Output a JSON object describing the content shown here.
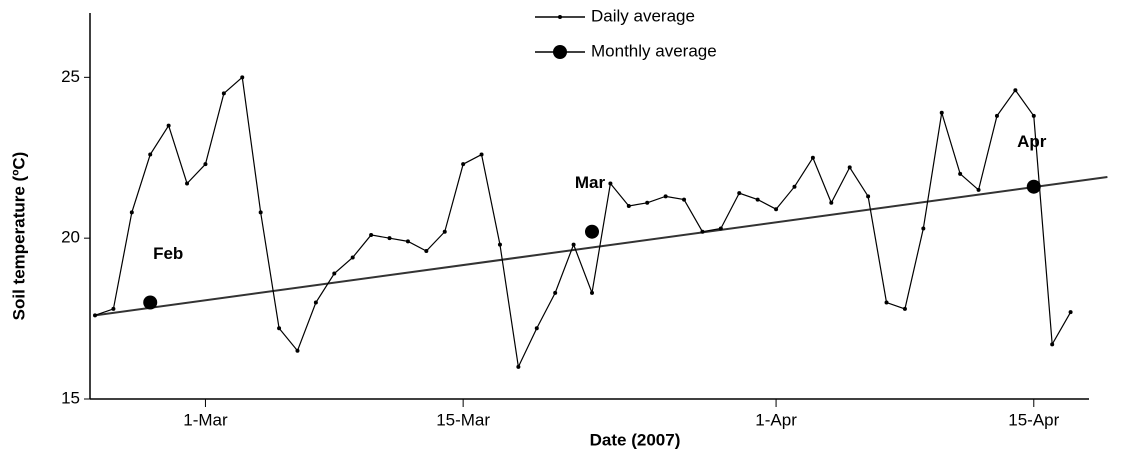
{
  "chart_data": {
    "type": "line",
    "x_label": "Date (2007)",
    "y_label": "Soil temperature (ºC)",
    "x": [
      "2007-02-23",
      "2007-02-24",
      "2007-02-25",
      "2007-02-26",
      "2007-02-27",
      "2007-02-28",
      "2007-03-01",
      "2007-03-02",
      "2007-03-03",
      "2007-03-04",
      "2007-03-05",
      "2007-03-06",
      "2007-03-07",
      "2007-03-08",
      "2007-03-09",
      "2007-03-10",
      "2007-03-11",
      "2007-03-12",
      "2007-03-13",
      "2007-03-14",
      "2007-03-15",
      "2007-03-16",
      "2007-03-17",
      "2007-03-18",
      "2007-03-19",
      "2007-03-20",
      "2007-03-21",
      "2007-03-22",
      "2007-03-23",
      "2007-03-24",
      "2007-03-25",
      "2007-03-26",
      "2007-03-27",
      "2007-03-28",
      "2007-03-29",
      "2007-03-30",
      "2007-03-31",
      "2007-04-01",
      "2007-04-02",
      "2007-04-03",
      "2007-04-04",
      "2007-04-05",
      "2007-04-06",
      "2007-04-07",
      "2007-04-08",
      "2007-04-09",
      "2007-04-10",
      "2007-04-11",
      "2007-04-12",
      "2007-04-13",
      "2007-04-14",
      "2007-04-15",
      "2007-04-16",
      "2007-04-17"
    ],
    "series": [
      {
        "name": "Daily average",
        "color": "#000000",
        "values": [
          17.6,
          17.8,
          20.8,
          22.6,
          23.5,
          21.7,
          22.3,
          24.5,
          25.0,
          20.8,
          17.2,
          16.5,
          18.0,
          18.9,
          19.4,
          20.1,
          20.0,
          19.9,
          19.6,
          20.2,
          22.3,
          22.6,
          19.8,
          16.0,
          17.2,
          18.3,
          19.8,
          18.3,
          21.7,
          21.0,
          21.1,
          21.3,
          21.2,
          20.2,
          20.3,
          21.4,
          21.2,
          20.9,
          21.6,
          22.5,
          21.1,
          22.2,
          21.3,
          18.0,
          17.8,
          20.3,
          23.9,
          22.0,
          21.5,
          23.8,
          24.6,
          23.8,
          16.7,
          17.7
        ]
      },
      {
        "name": "Monthly average",
        "color": "#000000",
        "x": [
          "2007-02-26",
          "2007-03-22",
          "2007-04-15"
        ],
        "values": [
          18.0,
          20.2,
          21.6
        ],
        "point_labels": [
          "Feb",
          "Mar",
          "Apr"
        ]
      }
    ],
    "trendline": {
      "x": [
        "2007-02-23",
        "2007-04-19"
      ],
      "values": [
        17.6,
        21.9
      ],
      "color": "#333333"
    },
    "xlim": [
      "2007-02-23",
      "2007-04-18"
    ],
    "xticks": [
      {
        "value": "2007-03-01",
        "label": "1-Mar"
      },
      {
        "value": "2007-03-15",
        "label": "15-Mar"
      },
      {
        "value": "2007-04-01",
        "label": "1-Apr"
      },
      {
        "value": "2007-04-15",
        "label": "15-Apr"
      }
    ],
    "ylim": [
      15,
      27
    ],
    "yticks": [
      15,
      20,
      25
    ],
    "legend": "top"
  }
}
